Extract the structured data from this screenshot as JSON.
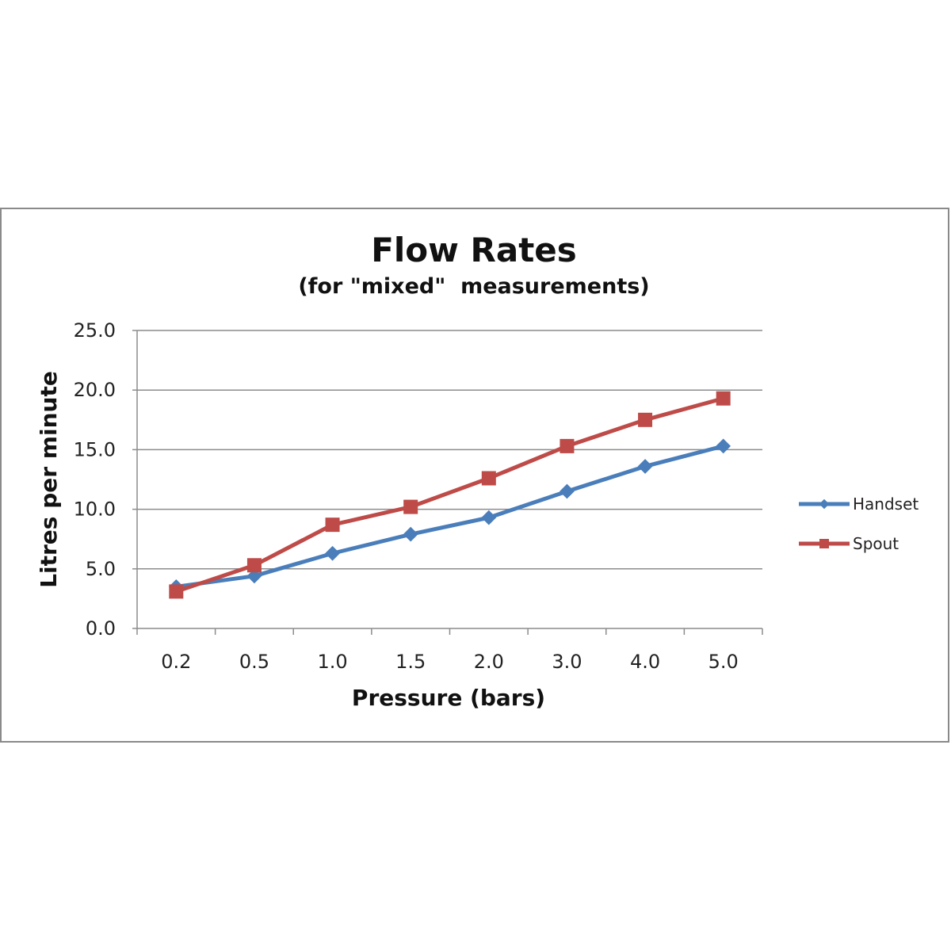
{
  "chart_data": {
    "type": "line",
    "title": "Flow Rates",
    "subtitle": "(for \"mixed\"  measurements)",
    "xlabel": "Pressure (bars)",
    "ylabel": "Litres per minute",
    "categories": [
      "0.2",
      "0.5",
      "1.0",
      "1.5",
      "2.0",
      "3.0",
      "4.0",
      "5.0"
    ],
    "y_ticks": [
      "0.0",
      "5.0",
      "10.0",
      "15.0",
      "20.0",
      "25.0"
    ],
    "ylim": [
      0,
      25
    ],
    "grid": true,
    "legend_position": "right",
    "series": [
      {
        "name": "Handset",
        "color": "#4a7ebb",
        "marker": "diamond",
        "values": [
          3.5,
          4.4,
          6.3,
          7.9,
          9.3,
          11.5,
          13.6,
          15.3
        ]
      },
      {
        "name": "Spout",
        "color": "#be4b48",
        "marker": "square",
        "values": [
          3.1,
          5.3,
          8.7,
          10.2,
          12.6,
          15.3,
          17.5,
          19.3
        ]
      }
    ]
  }
}
